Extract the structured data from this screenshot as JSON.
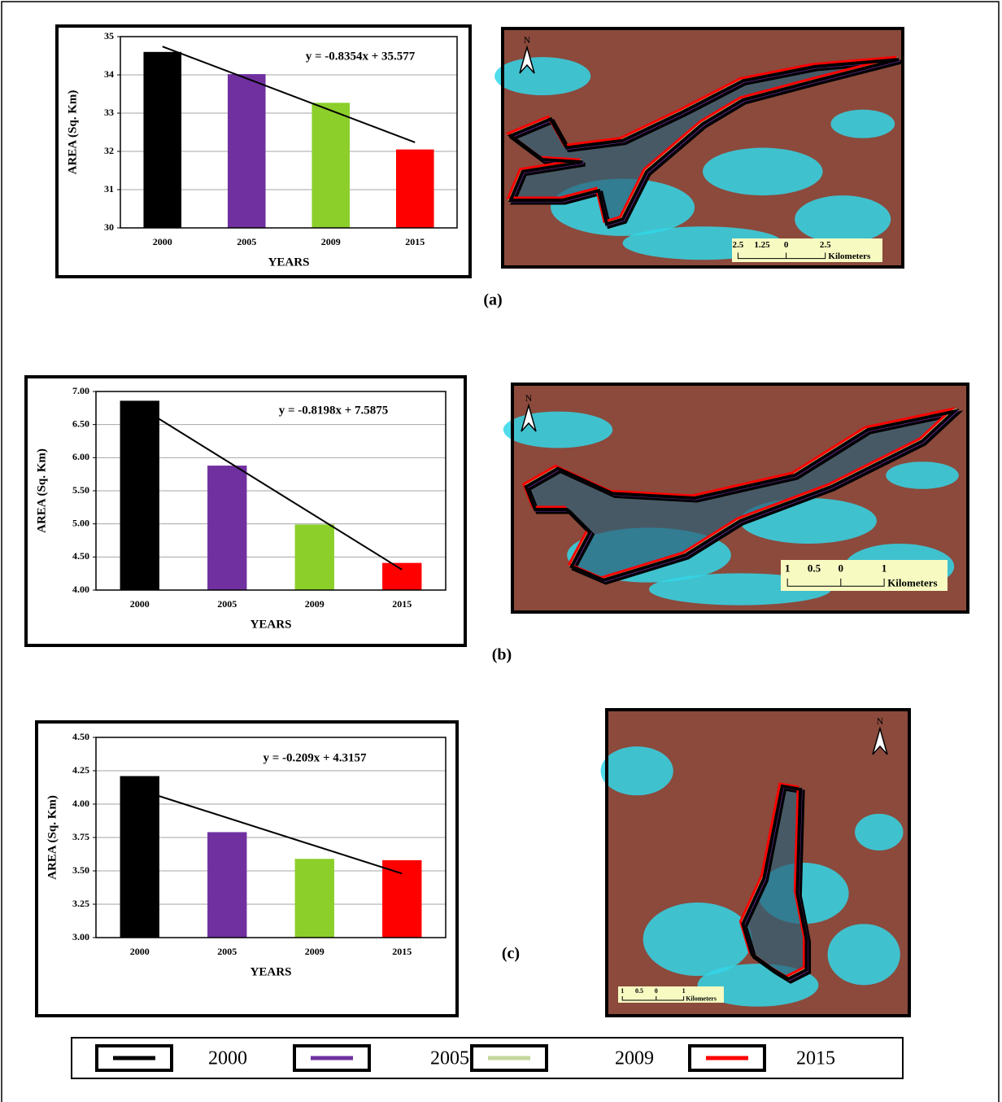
{
  "chart_data": [
    {
      "type": "bar",
      "categories": [
        "2000",
        "2005",
        "2009",
        "2015"
      ],
      "values": [
        34.6,
        34.02,
        33.27,
        32.05
      ],
      "colors": [
        "#000000",
        "#7030a0",
        "#8ccf2a",
        "#ff0000"
      ],
      "ylim": [
        30,
        35
      ],
      "yticks": [
        30,
        31,
        32,
        33,
        34,
        35
      ],
      "grid": true,
      "x_label": "YEARS",
      "y_label": "AREA (Sq. Km)",
      "trendline": {
        "slope": -0.8354,
        "intercept": 35.577,
        "label": "y = -0.8354x + 35.577"
      }
    },
    {
      "type": "bar",
      "categories": [
        "2000",
        "2005",
        "2009",
        "2015"
      ],
      "values": [
        6.86,
        5.88,
        4.99,
        4.41
      ],
      "colors": [
        "#000000",
        "#7030a0",
        "#8ccf2a",
        "#ff0000"
      ],
      "ylim": [
        4,
        7
      ],
      "yticks": [
        {
          "value": 4,
          "label": "4.00"
        },
        {
          "value": 4.5,
          "label": "4.50"
        },
        {
          "value": 5,
          "label": "5.00"
        },
        {
          "value": 5.5,
          "label": "5.50"
        },
        {
          "value": 6,
          "label": "6.00"
        },
        {
          "value": 6.5,
          "label": "6.50"
        },
        {
          "value": 7,
          "label": "7.00"
        }
      ],
      "grid": true,
      "x_label": "YEARS",
      "y_label": "AREA (Sq. Km)",
      "trendline": {
        "slope": -0.8198,
        "intercept": 7.5875,
        "label": "y = -0.8198x + 7.5875"
      }
    },
    {
      "type": "bar",
      "categories": [
        "2000",
        "2005",
        "2009",
        "2015"
      ],
      "values": [
        4.21,
        3.79,
        3.59,
        3.58
      ],
      "colors": [
        "#000000",
        "#7030a0",
        "#8ccf2a",
        "#ff0000"
      ],
      "ylim": [
        3,
        4.5
      ],
      "yticks": [
        {
          "value": 3,
          "label": "3.00"
        },
        {
          "value": 3.25,
          "label": "3.25"
        },
        {
          "value": 3.5,
          "label": "3.50"
        },
        {
          "value": 3.75,
          "label": "3.75"
        },
        {
          "value": 4,
          "label": "4.00"
        },
        {
          "value": 4.25,
          "label": "4.25"
        },
        {
          "value": 4.5,
          "label": "4.50"
        }
      ],
      "grid": true,
      "x_label": "YEARS",
      "y_label": "AREA (Sq. Km)",
      "trendline": {
        "slope": -0.209,
        "intercept": 4.3157,
        "label": "y = -0.209x + 4.3157"
      }
    }
  ],
  "panels": [
    "(a)",
    "(b)",
    "(c)"
  ],
  "maps": [
    {
      "north": "N",
      "scale_labels": [
        "2.5",
        "1.25",
        "0",
        "2.5"
      ],
      "unit": "Kilometers"
    },
    {
      "north": "N",
      "scale_labels": [
        "1",
        "0.5",
        "0",
        "1"
      ],
      "unit": "Kilometers"
    },
    {
      "north": "N",
      "scale_labels": [
        "1",
        "0.5",
        "0",
        "1"
      ],
      "unit": "Kilometers"
    }
  ],
  "legend": [
    {
      "label": "2000",
      "color": "#000000"
    },
    {
      "label": "2005",
      "color": "#7030a0"
    },
    {
      "label": "2009",
      "color": "#c4d79b"
    },
    {
      "label": "2015",
      "color": "#ff0000"
    }
  ]
}
